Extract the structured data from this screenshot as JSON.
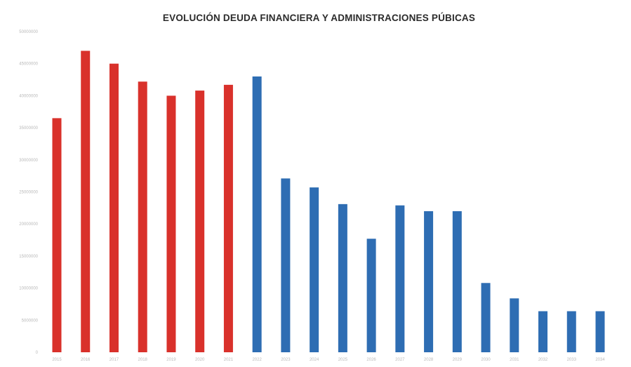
{
  "chart_data": {
    "type": "bar",
    "title": "EVOLUCIÓN DEUDA FINANCIERA Y ADMINISTRACIONES PÚBICAS",
    "xlabel": "",
    "ylabel": "",
    "ylim": [
      0,
      50000000
    ],
    "yticks": [
      0,
      5000000,
      10000000,
      15000000,
      20000000,
      25000000,
      30000000,
      35000000,
      40000000,
      45000000,
      50000000
    ],
    "ytick_labels": [
      "0",
      "5000000",
      "10000000",
      "15000000",
      "20000000",
      "25000000",
      "30000000",
      "35000000",
      "40000000",
      "45000000",
      "50000000"
    ],
    "categories": [
      "2015",
      "2016",
      "2017",
      "2018",
      "2019",
      "2020",
      "2021",
      "2022",
      "2023",
      "2024",
      "2025",
      "2026",
      "2027",
      "2028",
      "2029",
      "2030",
      "2031",
      "2032",
      "2033",
      "2034"
    ],
    "values": [
      36500000,
      47000000,
      45000000,
      42200000,
      40000000,
      40800000,
      41700000,
      43000000,
      27100000,
      25700000,
      23100000,
      17700000,
      22900000,
      22000000,
      22000000,
      10800000,
      8400000,
      6400000,
      6400000,
      6400000
    ],
    "colors": {
      "red": "#d9312b",
      "blue": "#2e6db3"
    },
    "bar_colors": [
      "red",
      "red",
      "red",
      "red",
      "red",
      "red",
      "red",
      "blue",
      "blue",
      "blue",
      "blue",
      "blue",
      "blue",
      "blue",
      "blue",
      "blue",
      "blue",
      "blue",
      "blue",
      "blue"
    ],
    "grid": false,
    "legend": "none"
  }
}
